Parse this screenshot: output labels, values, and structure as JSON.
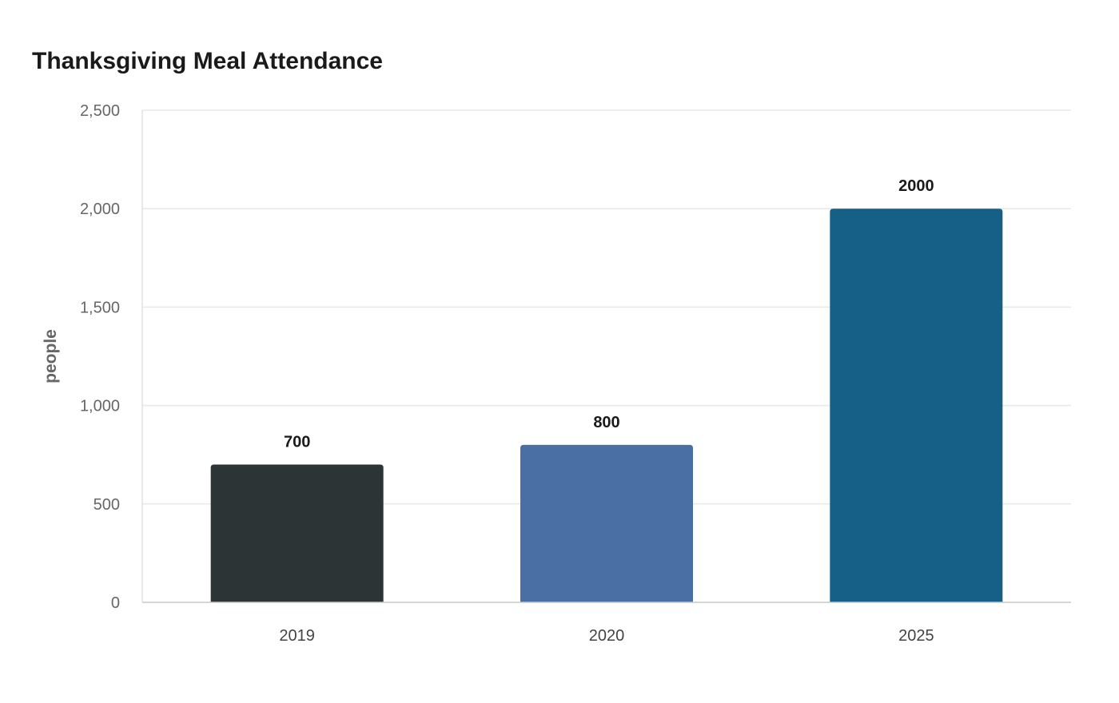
{
  "chart_data": {
    "type": "bar",
    "title": "Thanksgiving Meal Attendance",
    "xlabel": "",
    "ylabel": "people",
    "categories": [
      "2019",
      "2020",
      "2025"
    ],
    "values": [
      700,
      800,
      2000
    ],
    "data_labels": [
      "700",
      "800",
      "2000"
    ],
    "colors": [
      "#2d3436",
      "#4a6fa5",
      "#166088"
    ],
    "ylim": [
      0,
      2500
    ],
    "yticks": [
      0,
      500,
      1000,
      1500,
      2000,
      2500
    ],
    "ytick_labels": [
      "0",
      "500",
      "1,000",
      "1,500",
      "2,000",
      "2,500"
    ],
    "grid": true
  }
}
